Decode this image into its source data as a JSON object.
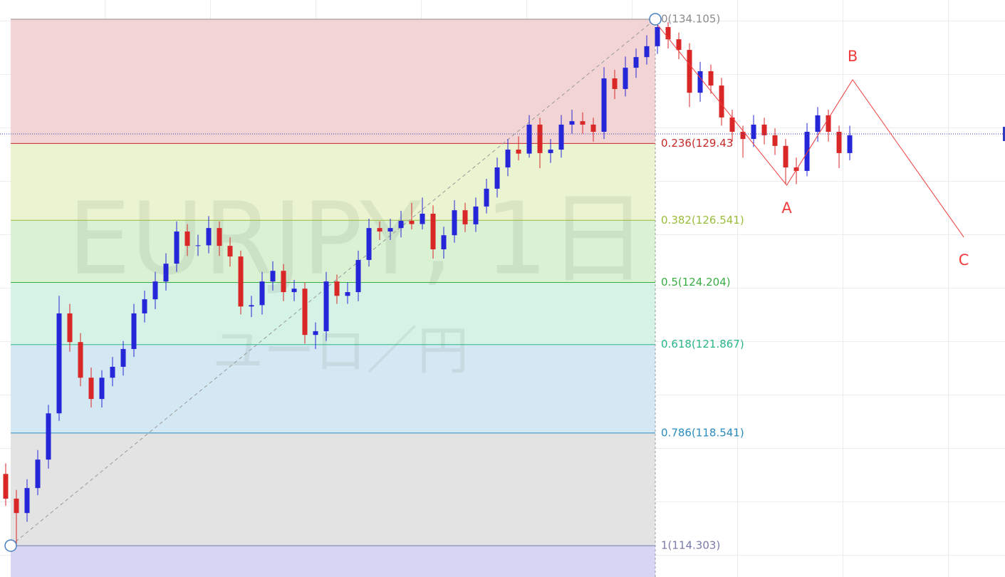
{
  "chart_data": {
    "type": "candlestick",
    "title": "EURJPY, 1日",
    "subtitle": "ユーロ／円",
    "up_color": "#2626d9",
    "down_color": "#d92626",
    "xlim": [
      -0.533,
      93.53
    ],
    "ylim": [
      113.124,
      134.828
    ],
    "candles": [
      [
        117.0,
        117.4,
        115.8,
        116.07
      ],
      [
        116.07,
        116.4,
        114.3,
        115.53
      ],
      [
        115.53,
        116.8,
        115.2,
        116.47
      ],
      [
        116.47,
        117.9,
        116.2,
        117.54
      ],
      [
        117.54,
        119.6,
        117.2,
        119.28
      ],
      [
        119.28,
        123.7,
        119.0,
        123.04
      ],
      [
        123.04,
        123.4,
        121.6,
        121.96
      ],
      [
        121.96,
        122.3,
        120.3,
        120.62
      ],
      [
        120.62,
        121.0,
        119.5,
        119.82
      ],
      [
        119.82,
        120.9,
        119.5,
        120.62
      ],
      [
        120.62,
        121.4,
        120.3,
        121.03
      ],
      [
        121.03,
        122.0,
        120.7,
        121.7
      ],
      [
        121.7,
        123.4,
        121.4,
        123.04
      ],
      [
        123.04,
        123.9,
        122.7,
        123.57
      ],
      [
        123.57,
        124.6,
        123.2,
        124.24
      ],
      [
        124.24,
        125.3,
        123.9,
        124.91
      ],
      [
        124.91,
        126.5,
        124.6,
        126.12
      ],
      [
        126.12,
        126.4,
        125.2,
        125.58
      ],
      [
        125.58,
        126.0,
        125.2,
        125.6
      ],
      [
        125.6,
        126.7,
        125.3,
        126.25
      ],
      [
        126.25,
        126.5,
        125.2,
        125.58
      ],
      [
        125.58,
        125.9,
        124.8,
        125.18
      ],
      [
        125.18,
        125.4,
        123.0,
        123.3
      ],
      [
        123.3,
        123.7,
        122.9,
        123.35
      ],
      [
        123.35,
        124.6,
        123.0,
        124.24
      ],
      [
        124.24,
        125.0,
        123.9,
        124.64
      ],
      [
        124.64,
        124.9,
        123.5,
        123.84
      ],
      [
        123.84,
        124.3,
        123.5,
        123.97
      ],
      [
        123.97,
        124.2,
        121.9,
        122.23
      ],
      [
        122.23,
        122.7,
        121.7,
        122.37
      ],
      [
        122.37,
        124.6,
        122.0,
        124.24
      ],
      [
        124.24,
        124.5,
        123.4,
        123.7
      ],
      [
        123.7,
        124.2,
        123.4,
        123.84
      ],
      [
        123.84,
        125.4,
        123.5,
        125.05
      ],
      [
        125.05,
        126.6,
        124.8,
        126.25
      ],
      [
        126.25,
        126.5,
        125.8,
        126.12
      ],
      [
        126.12,
        126.6,
        125.8,
        126.25
      ],
      [
        126.25,
        126.9,
        125.9,
        126.52
      ],
      [
        126.52,
        127.2,
        126.2,
        126.4
      ],
      [
        126.4,
        127.4,
        126.2,
        126.79
      ],
      [
        126.79,
        127.1,
        125.1,
        125.45
      ],
      [
        125.45,
        126.3,
        125.1,
        125.98
      ],
      [
        125.98,
        127.3,
        125.7,
        126.92
      ],
      [
        126.92,
        127.2,
        126.1,
        126.39
      ],
      [
        126.39,
        127.4,
        126.1,
        127.06
      ],
      [
        127.06,
        128.1,
        126.8,
        127.73
      ],
      [
        127.73,
        128.9,
        127.4,
        128.53
      ],
      [
        128.53,
        129.6,
        128.2,
        129.2
      ],
      [
        129.2,
        129.7,
        128.8,
        129.05
      ],
      [
        129.05,
        130.5,
        128.9,
        130.14
      ],
      [
        130.14,
        130.4,
        128.5,
        129.07
      ],
      [
        129.07,
        129.6,
        128.7,
        129.2
      ],
      [
        129.2,
        130.5,
        128.9,
        130.14
      ],
      [
        130.14,
        130.7,
        129.8,
        130.27
      ],
      [
        130.27,
        130.6,
        129.8,
        130.14
      ],
      [
        130.14,
        130.4,
        129.5,
        129.87
      ],
      [
        129.87,
        132.3,
        129.6,
        131.88
      ],
      [
        131.88,
        132.2,
        131.1,
        131.48
      ],
      [
        131.48,
        132.7,
        131.2,
        132.28
      ],
      [
        132.28,
        133.0,
        131.9,
        132.68
      ],
      [
        132.68,
        133.5,
        132.4,
        133.09
      ],
      [
        133.09,
        134.1,
        132.8,
        133.81
      ],
      [
        133.81,
        134.0,
        133.0,
        133.35
      ],
      [
        133.35,
        133.6,
        132.6,
        132.95
      ],
      [
        132.95,
        133.2,
        130.8,
        131.34
      ],
      [
        131.34,
        132.5,
        131.0,
        132.15
      ],
      [
        132.15,
        132.4,
        131.3,
        131.61
      ],
      [
        131.61,
        131.9,
        130.1,
        130.41
      ],
      [
        130.41,
        130.7,
        129.5,
        129.87
      ],
      [
        129.87,
        130.1,
        128.9,
        129.6
      ],
      [
        129.6,
        130.5,
        129.3,
        130.14
      ],
      [
        130.14,
        130.4,
        129.4,
        129.74
      ],
      [
        129.74,
        130.0,
        129.0,
        129.34
      ],
      [
        129.34,
        129.6,
        127.9,
        128.53
      ],
      [
        128.53,
        128.9,
        127.9,
        128.4
      ],
      [
        128.4,
        130.2,
        128.2,
        129.87
      ],
      [
        129.87,
        130.8,
        129.5,
        130.49
      ],
      [
        130.49,
        130.7,
        129.5,
        129.87
      ],
      [
        129.87,
        130.1,
        128.5,
        129.07
      ],
      [
        129.07,
        130.1,
        128.8,
        129.74
      ]
    ],
    "current_price": 129.79,
    "current_price_color": "#2f3bbf",
    "fibonacci": {
      "anchors": {
        "x": [
          0.47,
          60.8
        ],
        "y": [
          114.303,
          134.105
        ]
      },
      "line_color": "#999999",
      "levels": [
        {
          "label": "0(134.105)",
          "value": 134.105,
          "color": "#8c8c8c",
          "fill": "#f3d4d4"
        },
        {
          "label": "0.236(129.43",
          "value": 129.432,
          "color": "#c62828",
          "fill": "#ebf4d1"
        },
        {
          "label": "0.382(126.541)",
          "value": 126.541,
          "color": "#9abd3a",
          "fill": "#dbf1d4"
        },
        {
          "label": "0.5(124.204)",
          "value": 124.204,
          "color": "#3aad42",
          "fill": "#d4f2e5"
        },
        {
          "label": "0.618(121.867)",
          "value": 121.867,
          "color": "#2bb58a",
          "fill": "#d4e8f3"
        },
        {
          "label": "0.786(118.541)",
          "value": 118.541,
          "color": "#2a8cbf",
          "fill": "#e3e3e3"
        },
        {
          "label": "1(114.303)",
          "value": 114.303,
          "color": "#7a7aaa",
          "fill": "#d6d6f4"
        }
      ]
    },
    "wave": {
      "color": "#f03c3c",
      "x": [
        61,
        73.1,
        79.27,
        89.67
      ],
      "y": [
        133.9,
        127.86,
        131.83,
        125.91
      ],
      "labels": [
        null,
        "A",
        "B",
        "C"
      ]
    }
  }
}
